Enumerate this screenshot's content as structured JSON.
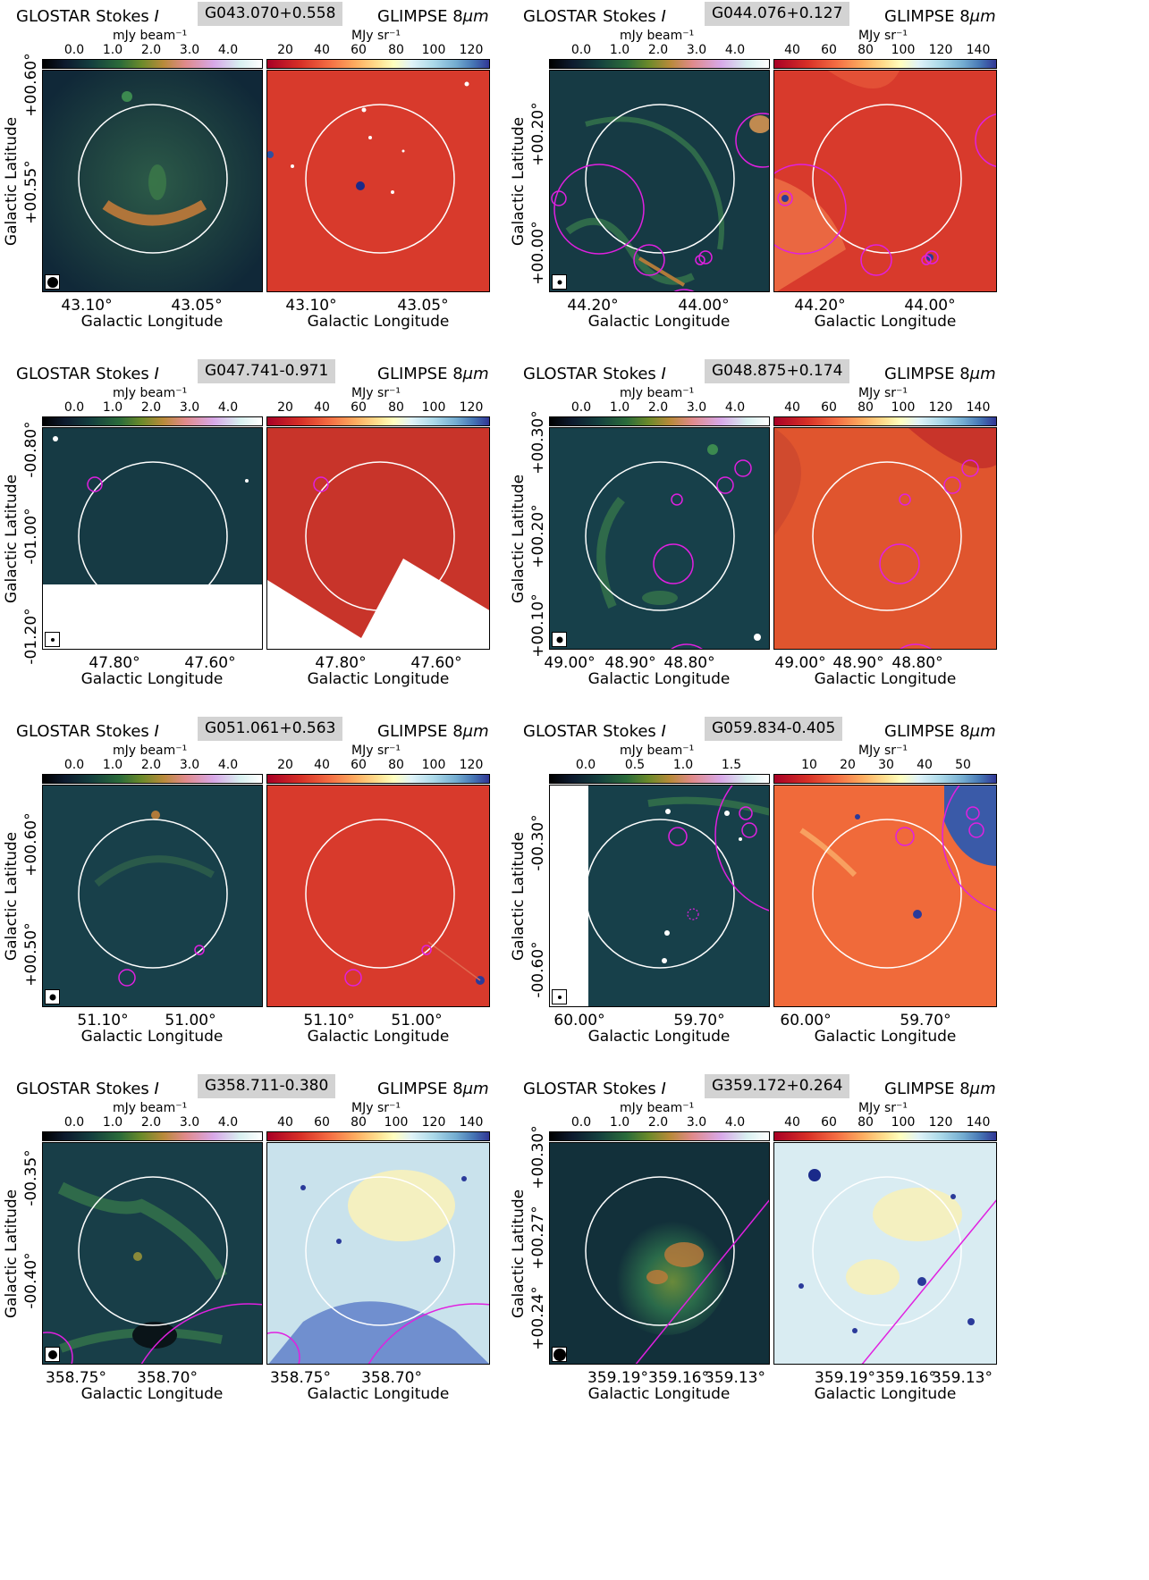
{
  "figures": [
    {
      "name": "G043.070+0.558",
      "left_title": "GLOSTAR Stokes",
      "left_title_sym": "I",
      "right_title": "GLIMPSE 8",
      "right_title_unit": "μm",
      "radio_unit": "mJy beam⁻¹",
      "ir_unit": "MJy sr⁻¹",
      "radio_ticks": [
        "0.0",
        "1.0",
        "2.0",
        "3.0",
        "4.0"
      ],
      "ir_ticks": [
        "20",
        "40",
        "60",
        "80",
        "100",
        "120"
      ],
      "x_ticks": [
        "43.10°",
        "43.05°"
      ],
      "y_ticks": [
        "+00.60°",
        "+00.55°"
      ],
      "xlabel": "Galactic Longitude",
      "ylabel": "Galactic Latitude"
    },
    {
      "name": "G044.076+0.127",
      "left_title": "GLOSTAR Stokes",
      "left_title_sym": "I",
      "right_title": "GLIMPSE 8",
      "right_title_unit": "μm",
      "radio_unit": "mJy beam⁻¹",
      "ir_unit": "MJy sr⁻¹",
      "radio_ticks": [
        "0.0",
        "1.0",
        "2.0",
        "3.0",
        "4.0"
      ],
      "ir_ticks": [
        "40",
        "60",
        "80",
        "100",
        "120",
        "140"
      ],
      "x_ticks": [
        "44.20°",
        "44.00°"
      ],
      "y_ticks": [
        "+00.20°",
        "+00.00°"
      ],
      "xlabel": "Galactic Longitude",
      "ylabel": "Galactic Latitude"
    },
    {
      "name": "G047.741-0.971",
      "left_title": "GLOSTAR Stokes",
      "left_title_sym": "I",
      "right_title": "GLIMPSE 8",
      "right_title_unit": "μm",
      "radio_unit": "mJy beam⁻¹",
      "ir_unit": "MJy sr⁻¹",
      "radio_ticks": [
        "0.0",
        "1.0",
        "2.0",
        "3.0",
        "4.0"
      ],
      "ir_ticks": [
        "20",
        "40",
        "60",
        "80",
        "100",
        "120"
      ],
      "x_ticks": [
        "47.80°",
        "47.60°"
      ],
      "y_ticks": [
        "-00.80°",
        "-01.00°",
        "-01.20°"
      ],
      "xlabel": "Galactic Longitude",
      "ylabel": "Galactic Latitude"
    },
    {
      "name": "G048.875+0.174",
      "left_title": "GLOSTAR Stokes",
      "left_title_sym": "I",
      "right_title": "GLIMPSE 8",
      "right_title_unit": "μm",
      "radio_unit": "mJy beam⁻¹",
      "ir_unit": "MJy sr⁻¹",
      "radio_ticks": [
        "0.0",
        "1.0",
        "2.0",
        "3.0",
        "4.0"
      ],
      "ir_ticks": [
        "40",
        "60",
        "80",
        "100",
        "120",
        "140"
      ],
      "x_ticks": [
        "49.00°",
        "48.90°",
        "48.80°"
      ],
      "y_ticks": [
        "+00.30°",
        "+00.20°",
        "+00.10°"
      ],
      "xlabel": "Galactic Longitude",
      "ylabel": "Galactic Latitude"
    },
    {
      "name": "G051.061+0.563",
      "left_title": "GLOSTAR Stokes",
      "left_title_sym": "I",
      "right_title": "GLIMPSE 8",
      "right_title_unit": "μm",
      "radio_unit": "mJy beam⁻¹",
      "ir_unit": "MJy sr⁻¹",
      "radio_ticks": [
        "0.0",
        "1.0",
        "2.0",
        "3.0",
        "4.0"
      ],
      "ir_ticks": [
        "20",
        "40",
        "60",
        "80",
        "100",
        "120"
      ],
      "x_ticks": [
        "51.10°",
        "51.00°"
      ],
      "y_ticks": [
        "+00.60°",
        "+00.50°"
      ],
      "xlabel": "Galactic Longitude",
      "ylabel": "Galactic Latitude"
    },
    {
      "name": "G059.834-0.405",
      "left_title": "GLOSTAR Stokes",
      "left_title_sym": "I",
      "right_title": "GLIMPSE 8",
      "right_title_unit": "μm",
      "radio_unit": "mJy beam⁻¹",
      "ir_unit": "MJy sr⁻¹",
      "radio_ticks": [
        "0.0",
        "0.5",
        "1.0",
        "1.5"
      ],
      "ir_ticks": [
        "10",
        "20",
        "30",
        "40",
        "50"
      ],
      "x_ticks": [
        "60.00°",
        "59.70°"
      ],
      "y_ticks": [
        "-00.30°",
        "-00.60°"
      ],
      "xlabel": "Galactic Longitude",
      "ylabel": "Galactic Latitude"
    },
    {
      "name": "G358.711-0.380",
      "left_title": "GLOSTAR Stokes",
      "left_title_sym": "I",
      "right_title": "GLIMPSE 8",
      "right_title_unit": "μm",
      "radio_unit": "mJy beam⁻¹",
      "ir_unit": "MJy sr⁻¹",
      "radio_ticks": [
        "0.0",
        "1.0",
        "2.0",
        "3.0",
        "4.0"
      ],
      "ir_ticks": [
        "40",
        "60",
        "80",
        "100",
        "120",
        "140"
      ],
      "x_ticks": [
        "358.75°",
        "358.70°"
      ],
      "y_ticks": [
        "-00.35°",
        "-00.40°"
      ],
      "xlabel": "Galactic Longitude",
      "ylabel": "Galactic Latitude"
    },
    {
      "name": "G359.172+0.264",
      "left_title": "GLOSTAR Stokes",
      "left_title_sym": "I",
      "right_title": "GLIMPSE 8",
      "right_title_unit": "μm",
      "radio_unit": "mJy beam⁻¹",
      "ir_unit": "MJy sr⁻¹",
      "radio_ticks": [
        "0.0",
        "1.0",
        "2.0",
        "3.0",
        "4.0"
      ],
      "ir_ticks": [
        "40",
        "60",
        "80",
        "100",
        "120",
        "140"
      ],
      "x_ticks": [
        "359.19°",
        "359.16°",
        "359.13°"
      ],
      "y_ticks": [
        "+00.30°",
        "+00.27°",
        "+00.24°"
      ],
      "xlabel": "Galactic Longitude",
      "ylabel": "Galactic Latitude"
    }
  ],
  "colors": {
    "radio_bg": "#143842",
    "ir_bg": "#d83a2c",
    "ir_blue_bg": "#cfe6ee",
    "circle": "#ffffff",
    "region": "#e020e0"
  }
}
